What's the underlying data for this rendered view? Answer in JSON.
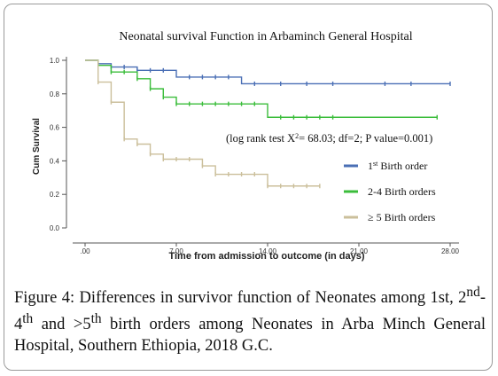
{
  "chart_data": {
    "type": "line",
    "title": "Neonatal survival Function in Arbaminch General Hospital",
    "xlabel": "Time from admission to outcome (in days)",
    "ylabel": "Cum Survival",
    "xlim": [
      0,
      28
    ],
    "ylim": [
      0,
      1.0
    ],
    "x_ticks": [
      0,
      7,
      14,
      21,
      28
    ],
    "x_tick_labels": [
      ".00",
      "7.00",
      "14.00",
      "21.00",
      "28.00"
    ],
    "y_ticks": [
      0,
      0.2,
      0.4,
      0.6,
      0.8,
      1.0
    ],
    "y_tick_labels": [
      "0.0",
      "0.2",
      "0.4",
      "0.6",
      "0.8",
      "1.0"
    ],
    "annotation": "(log rank test X",
    "annotation_sup": "2",
    "annotation_rest": "= 68.03; df=2; P value=0.001)",
    "legend_position": "right",
    "series": [
      {
        "name": "1st Birth order",
        "name_main": "1",
        "name_sup": "st",
        "name_rest": " Birth order",
        "color": "#4a6fb5",
        "steps": [
          [
            0,
            1.0
          ],
          [
            1,
            0.98
          ],
          [
            2,
            0.96
          ],
          [
            4,
            0.94
          ],
          [
            7,
            0.9
          ],
          [
            12,
            0.86
          ],
          [
            28,
            0.86
          ]
        ],
        "censored": [
          1,
          2,
          3,
          4,
          5,
          6,
          8,
          9,
          10,
          11,
          13,
          15,
          17,
          19,
          23,
          25,
          28
        ]
      },
      {
        "name": "2-4 Birth orders",
        "name_main": "2-4 Birth orders",
        "name_sup": "",
        "name_rest": "",
        "color": "#3bbd3b",
        "steps": [
          [
            0,
            1.0
          ],
          [
            1,
            0.97
          ],
          [
            2,
            0.93
          ],
          [
            4,
            0.89
          ],
          [
            5,
            0.83
          ],
          [
            6,
            0.78
          ],
          [
            7,
            0.74
          ],
          [
            14,
            0.66
          ],
          [
            27,
            0.66
          ]
        ],
        "censored": [
          2,
          3,
          4,
          5,
          6,
          7,
          8,
          9,
          10,
          11,
          12,
          13,
          15,
          16,
          17,
          18,
          19,
          27
        ]
      },
      {
        "name": "≥ 5 Birth orders",
        "name_main": "≥ 5 Birth orders",
        "name_sup": "",
        "name_rest": "",
        "color": "#cbbf9b",
        "steps": [
          [
            0,
            1.0
          ],
          [
            1,
            0.87
          ],
          [
            2,
            0.75
          ],
          [
            3,
            0.53
          ],
          [
            4,
            0.5
          ],
          [
            5,
            0.44
          ],
          [
            6,
            0.41
          ],
          [
            9,
            0.37
          ],
          [
            10,
            0.32
          ],
          [
            14,
            0.25
          ],
          [
            18,
            0.25
          ]
        ],
        "censored": [
          1,
          2,
          3,
          4,
          5,
          6,
          7,
          8,
          9,
          10,
          11,
          12,
          13,
          14,
          15,
          16,
          17,
          18
        ]
      }
    ]
  },
  "caption": {
    "figure_label": "Figure 4:",
    "text1": " Differences in survivor function of Neonates among 1st, 2",
    "sup1": "nd",
    "text2": "-4",
    "sup2": "th",
    "text3": " and >5",
    "sup3": "th",
    "text4": " birth orders among Neonates in Arba Minch General Hospital, Southern Ethiopia, 2018 G.C."
  }
}
